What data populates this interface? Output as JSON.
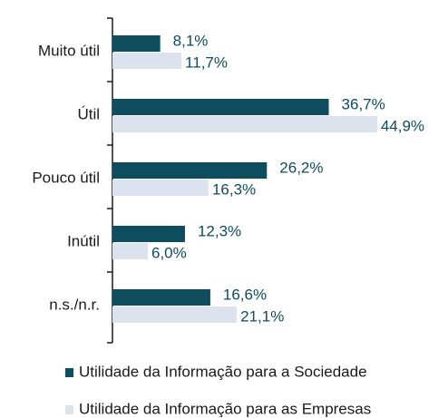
{
  "chart_data": {
    "type": "bar",
    "orientation": "horizontal",
    "categories": [
      "Muito útil",
      "Útil",
      "Pouco útil",
      "Inútil",
      "n.s./n.r."
    ],
    "series": [
      {
        "name": "Utilidade da Informação para a Sociedade",
        "color": "#0d4d5e",
        "values": [
          8.1,
          36.7,
          26.2,
          12.3,
          16.6
        ],
        "value_labels": [
          "8,1%",
          "36,7%",
          "26,2%",
          "12,3%",
          "16,6%"
        ]
      },
      {
        "name": "Utilidade da Informação para as Empresas",
        "color": "#dce3ef",
        "values": [
          11.7,
          44.9,
          16.3,
          6.0,
          21.1
        ],
        "value_labels": [
          "11,7%",
          "44,9%",
          "16,3%",
          "6,0%",
          "21,1%"
        ]
      }
    ],
    "legend": "bottom"
  }
}
